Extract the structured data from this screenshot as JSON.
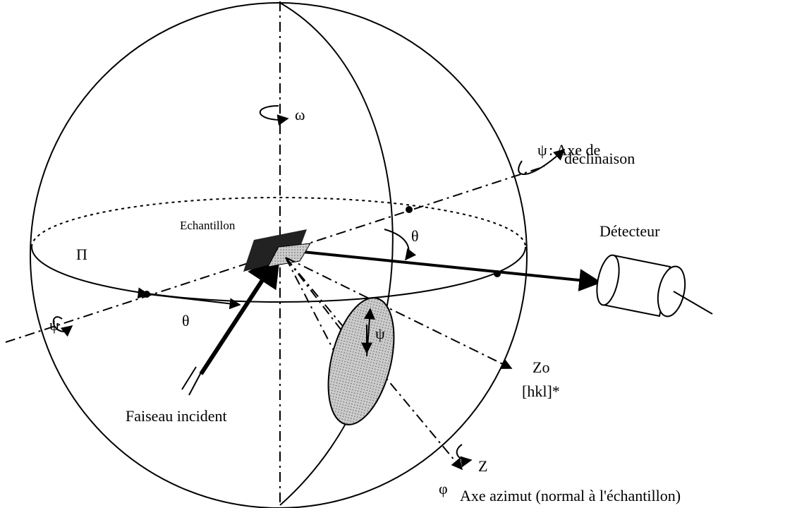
{
  "labels": {
    "omega": "ω",
    "psi_top": "ψ",
    "axe_de": ": Axe de",
    "declinaison": "déclinaison",
    "echantillon": "Echantillon",
    "theta_right": "θ",
    "detecteur": "Détecteur",
    "pi": "Π",
    "psi_left": "ψ",
    "theta_left": "θ",
    "psi_ellipse": "ψ",
    "zo": "Zo",
    "hkl": "[hkl]*",
    "faiseau": "Faiseau incident",
    "z": "Z",
    "phi": "φ",
    "axe_azimut": "Axe azimut (normal à l'échantillon)"
  }
}
